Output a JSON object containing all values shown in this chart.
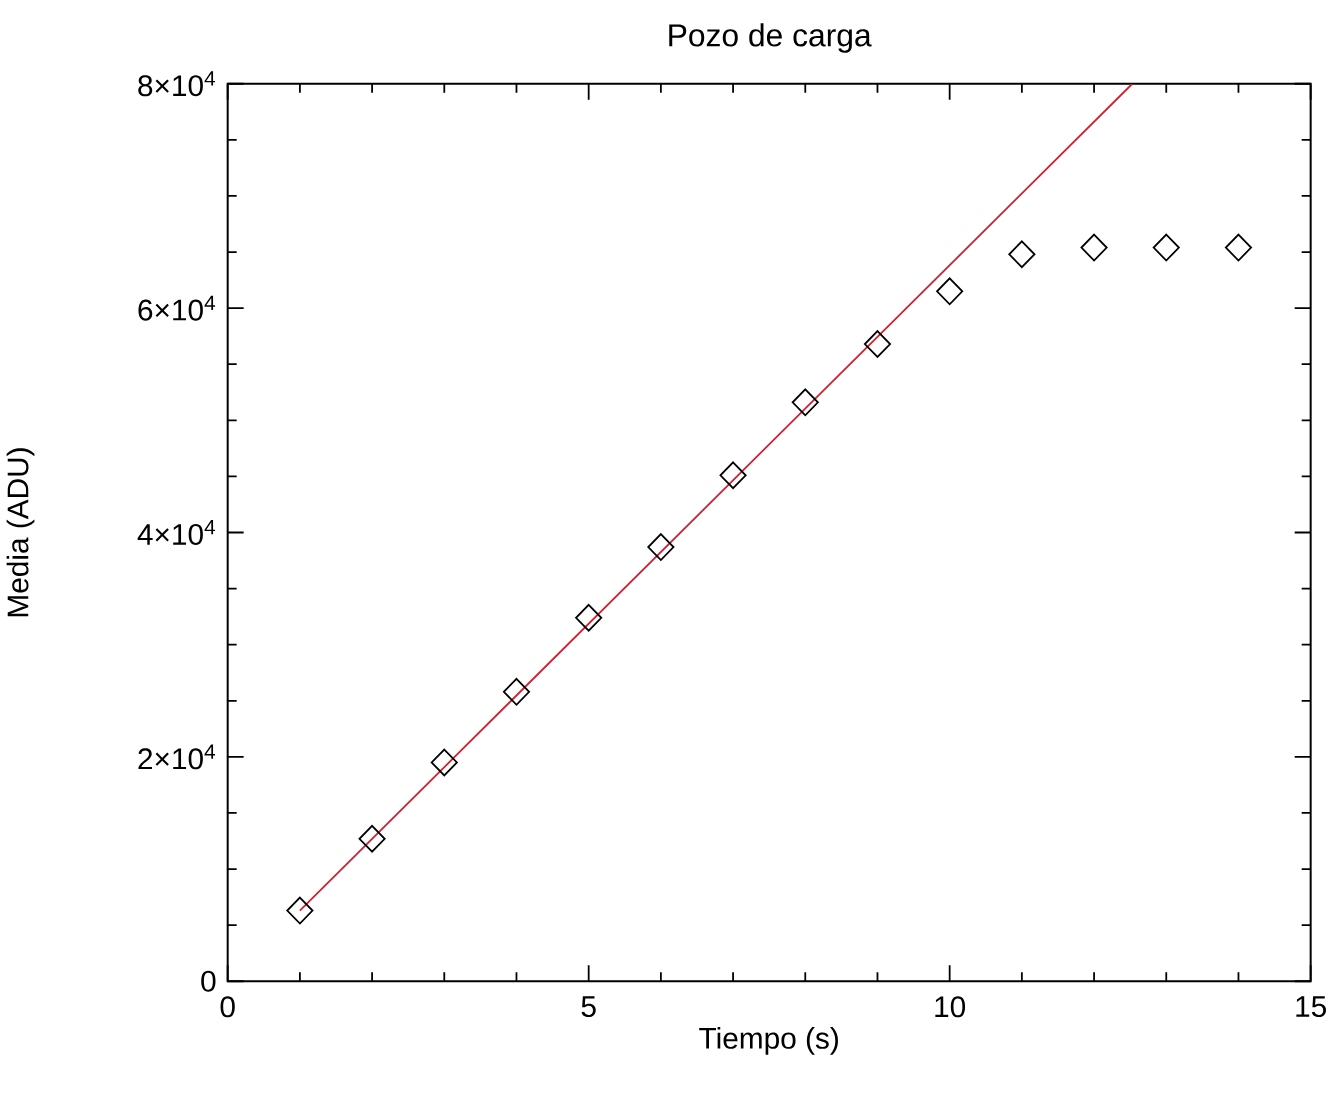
{
  "chart_data": {
    "type": "scatter",
    "title": "Pozo de carga",
    "xlabel": "Tiempo (s)",
    "ylabel": "Media (ADU)",
    "xlim": [
      0,
      15
    ],
    "ylim": [
      0,
      80000
    ],
    "xticks": [
      0,
      {
        "value": 1,
        "label": null
      },
      {
        "value": 2,
        "label": null
      },
      {
        "value": 3,
        "label": null
      },
      {
        "value": 4,
        "label": null
      },
      5,
      {
        "value": 6,
        "label": null
      },
      {
        "value": 7,
        "label": null
      },
      {
        "value": 8,
        "label": null
      },
      {
        "value": 9,
        "label": null
      },
      10,
      {
        "value": 11,
        "label": null
      },
      {
        "value": 12,
        "label": null
      },
      {
        "value": 13,
        "label": null
      },
      {
        "value": 14,
        "label": null
      },
      15
    ],
    "yticks": [
      0,
      {
        "value": 5000,
        "label": null
      },
      {
        "value": 10000,
        "label": null
      },
      {
        "value": 15000,
        "label": null
      },
      {
        "value": 20000,
        "label": "2×10$^{4}$"
      },
      {
        "value": 25000,
        "label": null
      },
      {
        "value": 30000,
        "label": null
      },
      {
        "value": 35000,
        "label": null
      },
      {
        "value": 40000,
        "label": "4×10$^{4}$"
      },
      {
        "value": 45000,
        "label": null
      },
      {
        "value": 50000,
        "label": null
      },
      {
        "value": 55000,
        "label": null
      },
      {
        "value": 60000,
        "label": "6×10$^{4}$"
      },
      {
        "value": 65000,
        "label": null
      },
      {
        "value": 70000,
        "label": null
      },
      {
        "value": 75000,
        "label": null
      },
      {
        "value": 80000,
        "label": "8×10$^{4}$"
      }
    ],
    "grid": false,
    "series": [
      {
        "color": "#000000",
        "marker": "diamond",
        "x": [
          1,
          2,
          3,
          4,
          5,
          6,
          7,
          8,
          9,
          10,
          11,
          12,
          13,
          14
        ],
        "values": [
          6300,
          12700,
          19500,
          25800,
          32400,
          38700,
          45100,
          51600,
          56800,
          61500,
          64800,
          65400,
          65400,
          65400
        ]
      },
      {
        "type": "line",
        "color": "#cc2233",
        "marker": "none",
        "line_style": "solid",
        "x": [
          1,
          12.53
        ],
        "values": [
          6300,
          80000
        ]
      }
    ]
  }
}
